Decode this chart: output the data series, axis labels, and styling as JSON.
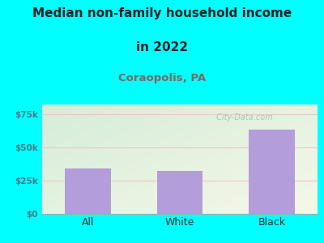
{
  "categories": [
    "All",
    "White",
    "Black"
  ],
  "values": [
    34000,
    32000,
    63000
  ],
  "bar_color": "#b39ddb",
  "title_line1": "Median non-family household income",
  "title_line2": "in 2022",
  "subtitle": "Coraopolis, PA",
  "subtitle_color": "#7a6a5a",
  "title_color": "#222222",
  "background_color": "#00ffff",
  "plot_bg_color_top_left": "#d4edda",
  "plot_bg_color_bottom_right": "#f7f7e8",
  "yticks": [
    0,
    25000,
    50000,
    75000
  ],
  "ytick_labels": [
    "$0",
    "$25k",
    "$50k",
    "$75k"
  ],
  "ylim": [
    0,
    82000
  ],
  "grid_color": "#e8c8cc",
  "watermark": " City-Data.com",
  "tick_color": "#4a7a8a",
  "xlabel_color": "#333333",
  "title_fontsize": 11,
  "subtitle_fontsize": 9.5
}
